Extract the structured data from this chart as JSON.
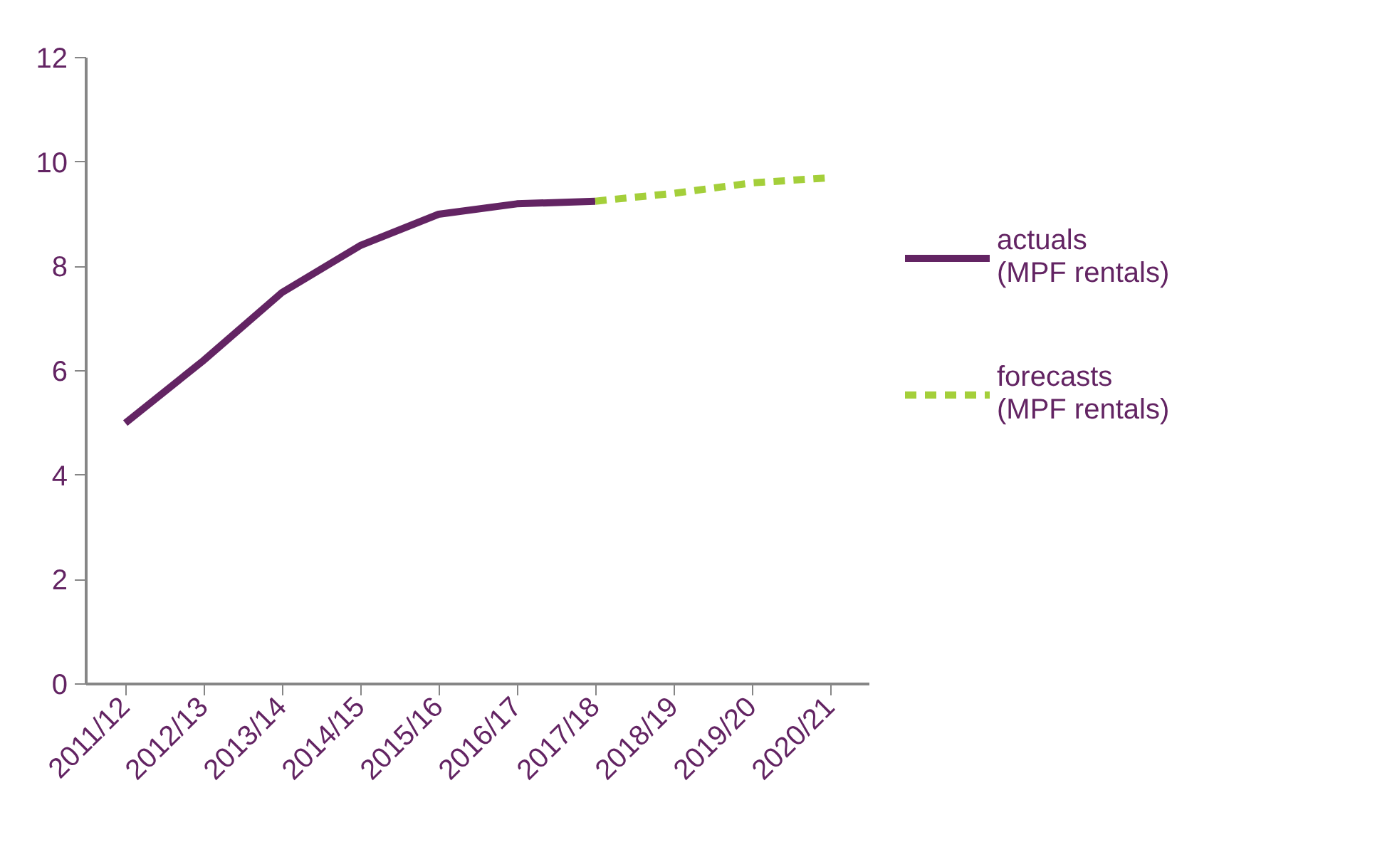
{
  "chart_data": {
    "type": "line",
    "categories": [
      "2011/12",
      "2012/13",
      "2013/14",
      "2014/15",
      "2015/16",
      "2016/17",
      "2017/18",
      "2018/19",
      "2019/20",
      "2020/21"
    ],
    "series": [
      {
        "name": "actuals (MPF rentals)",
        "color": "#632463",
        "line_style": "solid",
        "values": [
          5.0,
          6.2,
          7.5,
          8.4,
          9.0,
          9.2,
          9.25,
          null,
          null,
          null
        ]
      },
      {
        "name": "forecasts (MPF rentals)",
        "color": "#a4cf3a",
        "line_style": "dashed",
        "values": [
          null,
          null,
          null,
          null,
          null,
          null,
          9.25,
          9.4,
          9.6,
          9.7
        ]
      }
    ],
    "ylim": [
      0,
      12
    ],
    "yticks": [
      0,
      2,
      4,
      6,
      8,
      10,
      12
    ],
    "grid": false,
    "legend": "right",
    "marker": "none"
  }
}
